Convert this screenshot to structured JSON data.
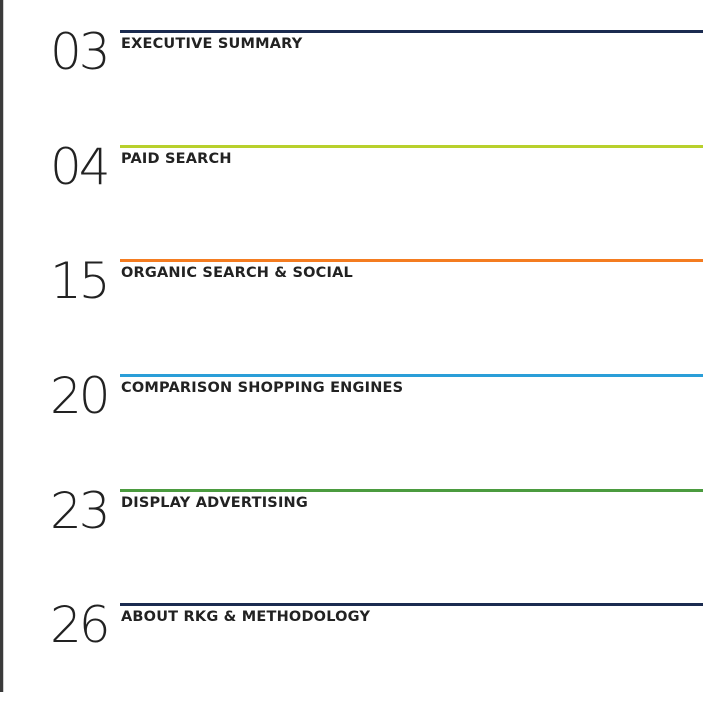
{
  "toc": [
    {
      "page": "03",
      "title": "EXECUTIVE SUMMARY",
      "color": "#1b2b50"
    },
    {
      "page": "04",
      "title": "PAID SEARCH",
      "color": "#b8d02c"
    },
    {
      "page": "15",
      "title": "ORGANIC SEARCH & SOCIAL",
      "color": "#f47c20"
    },
    {
      "page": "20",
      "title": "COMPARISON SHOPPING ENGINES",
      "color": "#2a9ed8"
    },
    {
      "page": "23",
      "title": "DISPLAY ADVERTISING",
      "color": "#4b9b3f"
    },
    {
      "page": "26",
      "title": "ABOUT RKG & METHODOLOGY",
      "color": "#1b2b50"
    }
  ]
}
